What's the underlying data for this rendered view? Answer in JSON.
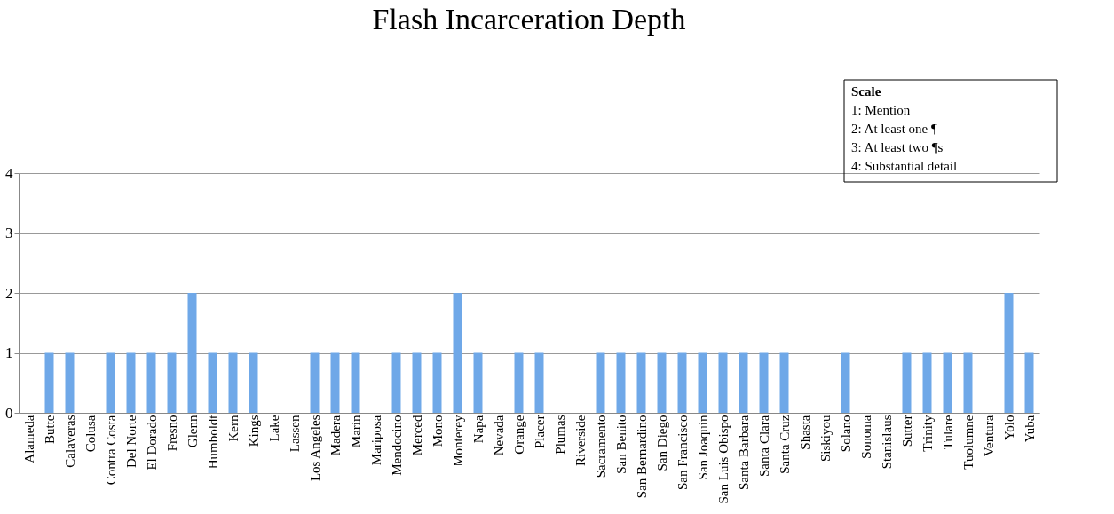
{
  "chart_data": {
    "type": "bar",
    "title": "Flash Incarceration Depth",
    "categories": [
      "Alameda",
      "Butte",
      "Calaveras",
      "Colusa",
      "Contra Costa",
      "Del Norte",
      "El Dorado",
      "Fresno",
      "Glenn",
      "Humboldt",
      "Kern",
      "Kings",
      "Lake",
      "Lassen",
      "Los Angeles",
      "Madera",
      "Marin",
      "Mariposa",
      "Mendocino",
      "Merced",
      "Mono",
      "Monterey",
      "Napa",
      "Nevada",
      "Orange",
      "Placer",
      "Plumas",
      "Riverside",
      "Sacramento",
      "San Benito",
      "San Bernardino",
      "San Diego",
      "San Francisco",
      "San Joaquin",
      "San Luis Obispo",
      "Santa Barbara",
      "Santa Clara",
      "Santa Cruz",
      "Shasta",
      "Siskiyou",
      "Solano",
      "Sonoma",
      "Stanislaus",
      "Sutter",
      "Trinity",
      "Tulare",
      "Tuolumne",
      "Ventura",
      "Yolo",
      "Yuba"
    ],
    "values": [
      0,
      1,
      1,
      0,
      1,
      1,
      1,
      1,
      2,
      1,
      1,
      1,
      0,
      0,
      1,
      1,
      1,
      0,
      1,
      1,
      1,
      2,
      1,
      0,
      1,
      1,
      0,
      0,
      1,
      1,
      1,
      1,
      1,
      1,
      1,
      1,
      1,
      1,
      0,
      0,
      1,
      0,
      0,
      1,
      1,
      1,
      1,
      0,
      2,
      1
    ],
    "color": "#6fa8e8",
    "ylim": [
      0,
      4
    ],
    "yticks": [
      0,
      1,
      2,
      3,
      4
    ],
    "grid": "y",
    "annotations": [
      "Scale",
      "1: Mention",
      "2: At least one ¶",
      "3: At least two ¶s",
      "4: Substantial detail"
    ]
  }
}
